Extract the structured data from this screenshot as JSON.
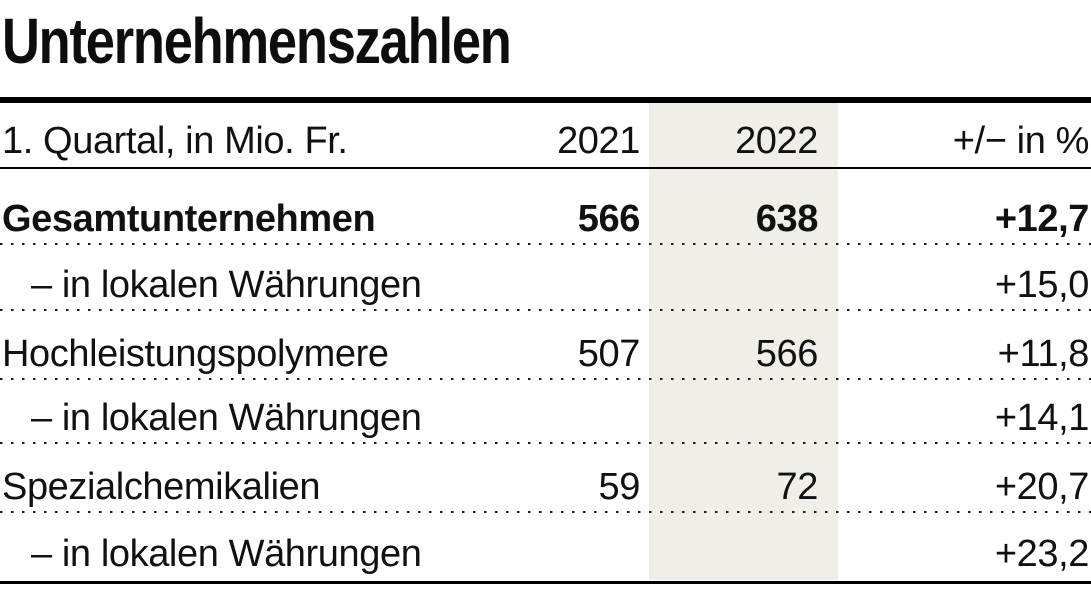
{
  "chart_data": {
    "type": "table",
    "title": "Unternehmenszahlen",
    "unit_note": "1. Quartal, in Mio. Fr.",
    "header": {
      "label": "1. Quartal, in Mio. Fr.",
      "y2021": "2021",
      "y2022": "2022",
      "change": "+/− in %"
    },
    "highlight_column": "2022",
    "rows": [
      {
        "label": "Gesamtunternehmen",
        "y2021": "566",
        "y2022": "638",
        "change": "+12,7",
        "style": "bold"
      },
      {
        "label": "– in lokalen Währungen",
        "y2021": "",
        "y2022": "",
        "change": "+15,0",
        "style": "indent"
      },
      {
        "label": "Hochleistungspolymere",
        "y2021": "507",
        "y2022": "566",
        "change": "+11,8",
        "style": "normal"
      },
      {
        "label": "– in lokalen Währungen",
        "y2021": "",
        "y2022": "",
        "change": "+14,1",
        "style": "indent"
      },
      {
        "label": "Spezialchemikalien",
        "y2021": "59",
        "y2022": "72",
        "change": "+20,7",
        "style": "normal"
      },
      {
        "label": "– in lokalen Währungen",
        "y2021": "",
        "y2022": "",
        "change": "+23,2",
        "style": "indent"
      }
    ],
    "colors": {
      "highlight_stripe": "#efeee8",
      "text": "#111111",
      "rule": "#000000"
    },
    "layout": {
      "grid": "off",
      "legend": "none"
    }
  }
}
